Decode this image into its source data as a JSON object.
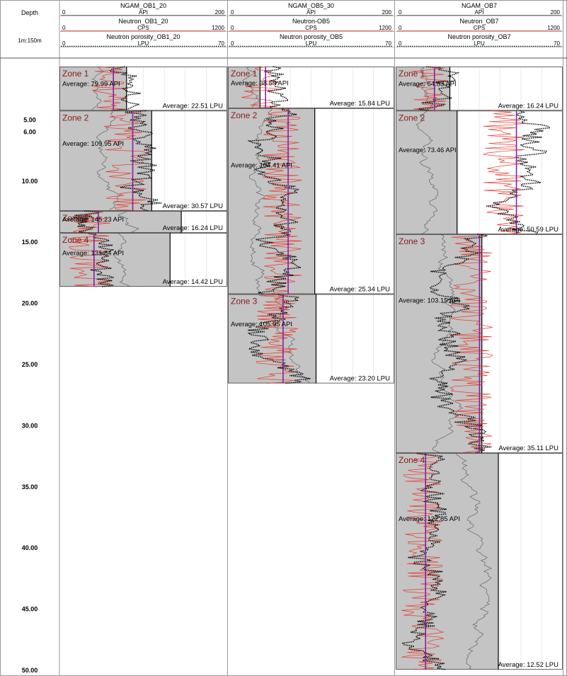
{
  "depth_column": {
    "title": "Depth",
    "scale": "1m:150m",
    "depth_range": [
      6,
      50
    ],
    "ticks": [
      {
        "depth": 6,
        "label": "6.00"
      },
      {
        "depth": 5,
        "label": "5.00"
      },
      {
        "depth": 10,
        "label": "10.00"
      },
      {
        "depth": 15,
        "label": "15.00"
      },
      {
        "depth": 20,
        "label": "20.00"
      },
      {
        "depth": 25,
        "label": "25.00"
      },
      {
        "depth": 30,
        "label": "30.00"
      },
      {
        "depth": 35,
        "label": "35.00"
      },
      {
        "depth": 40,
        "label": "40.00"
      },
      {
        "depth": 45,
        "label": "45.00"
      },
      {
        "depth": 50,
        "label": "50.00"
      }
    ]
  },
  "colors": {
    "gamma_fill": "#c4c4c4",
    "gamma_line": "#555555",
    "neutron_cps": "#e8392c",
    "porosity": "#111111",
    "average_line": "#8a1fa0",
    "zone_label": "#8b1a1a",
    "grid": "#dcdcdc"
  },
  "chart_data": {
    "type": "well-log",
    "tracks": [
      {
        "curves": [
          {
            "name": "NGAM_OB1_20",
            "unit": "API",
            "min": "0",
            "max": "200"
          },
          {
            "name": "Neutron_OB1_20",
            "unit": "CPS",
            "min": "0",
            "max": "1200"
          },
          {
            "name": "Neutron porosity_OB1_20",
            "unit": "LPU",
            "min": "0",
            "max": "70"
          }
        ],
        "zones": [
          {
            "label": "Zone 1",
            "top": 0.7,
            "bottom": 4.3,
            "avg_api": "Average: 79.99 API",
            "avg_lpu": "Average: 22.51 LPU",
            "api": 79.99,
            "lpu": 22.51
          },
          {
            "label": "Zone 2",
            "top": 4.3,
            "bottom": 12.5,
            "avg_api": "Average: 109.95 API",
            "avg_lpu": "Average: 30.57 LPU",
            "api": 109.95,
            "lpu": 30.57
          },
          {
            "label": "Zone 3",
            "top": 12.5,
            "bottom": 14.3,
            "avg_api": "Average: 145.23 API",
            "avg_lpu": "Average: 16.24 LPU",
            "api": 145.23,
            "lpu": 16.24
          },
          {
            "label": "Zone 4",
            "top": 14.3,
            "bottom": 18.7,
            "avg_api": "Average: 131.84 API",
            "avg_lpu": "Average: 14.42 LPU",
            "api": 131.84,
            "lpu": 14.42
          }
        ]
      },
      {
        "curves": [
          {
            "name": "NGAM_OB5_30",
            "unit": "API",
            "min": "0",
            "max": "200"
          },
          {
            "name": "Neutron-OB5",
            "unit": "CPS",
            "min": "0",
            "max": "1200"
          },
          {
            "name": "Neutron porosity_OB5",
            "unit": "LPU",
            "min": "0",
            "max": "70"
          }
        ],
        "zones": [
          {
            "label": "Zone 1",
            "top": 0.7,
            "bottom": 4.1,
            "avg_api": "Average: 38.59 API",
            "avg_lpu": "Average: 15.84 LPU",
            "api": 38.59,
            "lpu": 15.84
          },
          {
            "label": "Zone 2",
            "top": 4.1,
            "bottom": 19.3,
            "avg_api": "Average: 104.41 API",
            "avg_lpu": "Average: 25.34 LPU",
            "api": 104.41,
            "lpu": 25.34
          },
          {
            "label": "Zone 3",
            "top": 19.3,
            "bottom": 26.6,
            "avg_api": "Average: 105.95 API",
            "avg_lpu": "Average: 23.20 LPU",
            "api": 105.95,
            "lpu": 23.2
          }
        ]
      },
      {
        "curves": [
          {
            "name": "NGAM_OB7",
            "unit": "API",
            "min": "0",
            "max": "200"
          },
          {
            "name": "Neutron_OB7",
            "unit": "CPS",
            "min": "0",
            "max": "1200"
          },
          {
            "name": "Neutron porosity_OB7",
            "unit": "LPU",
            "min": "0",
            "max": "70"
          }
        ],
        "zones": [
          {
            "label": "Zone 1",
            "top": 0.7,
            "bottom": 4.3,
            "avg_api": "Average: 64.83 API",
            "avg_lpu": "Average: 16.24 LPU",
            "api": 64.83,
            "lpu": 16.24
          },
          {
            "label": "Zone 2",
            "top": 4.3,
            "bottom": 14.4,
            "avg_api": "Average: 73.46 API",
            "avg_lpu": "Average: 50.59 LPU",
            "api": 73.46,
            "lpu": 50.59
          },
          {
            "label": "Zone 3",
            "top": 14.4,
            "bottom": 32.3,
            "avg_api": "Average: 103.15 API",
            "avg_lpu": "Average: 35.11 LPU",
            "api": 103.15,
            "lpu": 35.11
          },
          {
            "label": "Zone 4",
            "top": 32.3,
            "bottom": 50,
            "avg_api": "Average: 122.85 API",
            "avg_lpu": "Average: 12.52 LPU",
            "api": 122.85,
            "lpu": 12.52
          }
        ]
      }
    ]
  }
}
